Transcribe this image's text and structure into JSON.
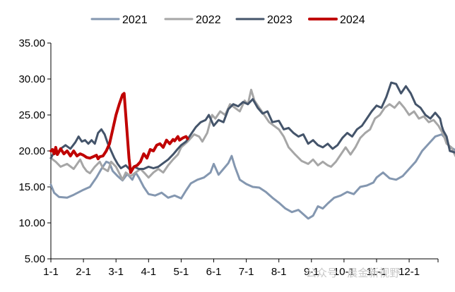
{
  "chart_data": {
    "type": "line",
    "title": "",
    "xlabel": "",
    "ylabel": "",
    "ylim": [
      5,
      35
    ],
    "yticks": [
      "5.00",
      "10.00",
      "15.00",
      "20.00",
      "25.00",
      "30.00",
      "35.00"
    ],
    "xlim": [
      0,
      12
    ],
    "xticks": [
      "1-1",
      "2-1",
      "3-1",
      "4-1",
      "5-1",
      "6-1",
      "7-1",
      "8-1",
      "9-1",
      "10-1",
      "11-1",
      "12-1"
    ],
    "legend_position": "top",
    "series": [
      {
        "name": "2021",
        "color": "#8497b0",
        "points": [
          [
            0,
            15.3
          ],
          [
            0.1,
            14.2
          ],
          [
            0.25,
            13.6
          ],
          [
            0.5,
            13.5
          ],
          [
            0.7,
            13.9
          ],
          [
            1.0,
            14.6
          ],
          [
            1.2,
            15.0
          ],
          [
            1.4,
            16.3
          ],
          [
            1.55,
            17.5
          ],
          [
            1.7,
            18.5
          ],
          [
            1.8,
            18.3
          ],
          [
            1.9,
            17.2
          ],
          [
            2.05,
            16.5
          ],
          [
            2.2,
            15.9
          ],
          [
            2.35,
            16.8
          ],
          [
            2.5,
            16.0
          ],
          [
            2.6,
            17.0
          ],
          [
            2.7,
            16.3
          ],
          [
            2.85,
            15.0
          ],
          [
            3.0,
            14.0
          ],
          [
            3.2,
            13.8
          ],
          [
            3.4,
            14.2
          ],
          [
            3.6,
            13.5
          ],
          [
            3.8,
            13.8
          ],
          [
            4.0,
            13.4
          ],
          [
            4.15,
            14.5
          ],
          [
            4.3,
            15.5
          ],
          [
            4.5,
            16.0
          ],
          [
            4.7,
            16.3
          ],
          [
            4.9,
            17.0
          ],
          [
            5.0,
            18.2
          ],
          [
            5.15,
            16.7
          ],
          [
            5.3,
            17.5
          ],
          [
            5.45,
            18.3
          ],
          [
            5.55,
            19.3
          ],
          [
            5.65,
            17.8
          ],
          [
            5.8,
            16.0
          ],
          [
            6.0,
            15.4
          ],
          [
            6.2,
            15.0
          ],
          [
            6.4,
            14.9
          ],
          [
            6.6,
            14.3
          ],
          [
            6.8,
            13.5
          ],
          [
            7.0,
            12.8
          ],
          [
            7.2,
            12.0
          ],
          [
            7.4,
            11.5
          ],
          [
            7.6,
            11.8
          ],
          [
            7.75,
            11.2
          ],
          [
            7.9,
            10.6
          ],
          [
            8.05,
            11.0
          ],
          [
            8.2,
            12.3
          ],
          [
            8.35,
            12.0
          ],
          [
            8.5,
            12.7
          ],
          [
            8.7,
            13.5
          ],
          [
            8.9,
            13.8
          ],
          [
            9.1,
            14.3
          ],
          [
            9.3,
            14.0
          ],
          [
            9.5,
            15.0
          ],
          [
            9.7,
            15.2
          ],
          [
            9.9,
            15.6
          ],
          [
            10.0,
            16.3
          ],
          [
            10.2,
            17.0
          ],
          [
            10.4,
            16.2
          ],
          [
            10.6,
            16.0
          ],
          [
            10.8,
            16.5
          ],
          [
            11.0,
            17.5
          ],
          [
            11.2,
            18.5
          ],
          [
            11.4,
            20.0
          ],
          [
            11.6,
            21.0
          ],
          [
            11.8,
            22.0
          ],
          [
            12.0,
            22.3
          ],
          [
            12.1,
            21.8
          ],
          [
            12.25,
            20.5
          ],
          [
            12.35,
            20.3
          ],
          [
            12.45,
            20.0
          ],
          [
            12.5,
            19.8
          ]
        ]
      },
      {
        "name": "2022",
        "color": "#a6a6a6",
        "points": [
          [
            0,
            19.0
          ],
          [
            0.15,
            18.5
          ],
          [
            0.3,
            17.8
          ],
          [
            0.5,
            18.2
          ],
          [
            0.7,
            17.5
          ],
          [
            0.9,
            18.8
          ],
          [
            1.0,
            17.8
          ],
          [
            1.1,
            17.2
          ],
          [
            1.2,
            16.9
          ],
          [
            1.35,
            17.8
          ],
          [
            1.5,
            18.5
          ],
          [
            1.6,
            17.6
          ],
          [
            1.75,
            17.2
          ],
          [
            1.85,
            18.5
          ],
          [
            2.0,
            17.8
          ],
          [
            2.1,
            16.9
          ],
          [
            2.2,
            16.0
          ],
          [
            2.3,
            17.0
          ],
          [
            2.45,
            16.5
          ],
          [
            2.6,
            17.0
          ],
          [
            2.75,
            17.5
          ],
          [
            2.9,
            16.8
          ],
          [
            3.0,
            16.3
          ],
          [
            3.15,
            17.0
          ],
          [
            3.3,
            17.5
          ],
          [
            3.45,
            17.0
          ],
          [
            3.6,
            18.0
          ],
          [
            3.75,
            18.8
          ],
          [
            3.9,
            19.5
          ],
          [
            4.0,
            20.5
          ],
          [
            4.2,
            21.3
          ],
          [
            4.4,
            22.3
          ],
          [
            4.55,
            22.0
          ],
          [
            4.65,
            21.3
          ],
          [
            4.8,
            22.5
          ],
          [
            4.95,
            25.0
          ],
          [
            5.05,
            24.5
          ],
          [
            5.2,
            25.5
          ],
          [
            5.35,
            25.0
          ],
          [
            5.5,
            26.5
          ],
          [
            5.65,
            26.0
          ],
          [
            5.8,
            25.5
          ],
          [
            5.95,
            27.0
          ],
          [
            6.05,
            26.5
          ],
          [
            6.15,
            28.5
          ],
          [
            6.25,
            27.0
          ],
          [
            6.4,
            26.0
          ],
          [
            6.55,
            25.0
          ],
          [
            6.7,
            24.0
          ],
          [
            6.85,
            23.5
          ],
          [
            7.0,
            23.0
          ],
          [
            7.15,
            22.0
          ],
          [
            7.3,
            20.5
          ],
          [
            7.5,
            19.5
          ],
          [
            7.7,
            18.6
          ],
          [
            7.9,
            18.2
          ],
          [
            8.05,
            18.8
          ],
          [
            8.2,
            18.0
          ],
          [
            8.35,
            18.5
          ],
          [
            8.5,
            18.0
          ],
          [
            8.6,
            17.8
          ],
          [
            8.75,
            18.5
          ],
          [
            8.9,
            19.5
          ],
          [
            9.05,
            20.5
          ],
          [
            9.2,
            19.5
          ],
          [
            9.35,
            20.5
          ],
          [
            9.5,
            21.8
          ],
          [
            9.65,
            22.5
          ],
          [
            9.8,
            23.0
          ],
          [
            9.95,
            24.5
          ],
          [
            10.1,
            25.0
          ],
          [
            10.25,
            26.0
          ],
          [
            10.4,
            26.5
          ],
          [
            10.55,
            26.0
          ],
          [
            10.7,
            26.8
          ],
          [
            10.85,
            26.0
          ],
          [
            11.0,
            25.0
          ],
          [
            11.15,
            25.5
          ],
          [
            11.3,
            24.5
          ],
          [
            11.45,
            24.8
          ],
          [
            11.6,
            24.0
          ],
          [
            11.75,
            24.3
          ],
          [
            11.9,
            23.5
          ],
          [
            12.05,
            22.3
          ],
          [
            12.15,
            21.0
          ],
          [
            12.3,
            20.5
          ],
          [
            12.4,
            19.5
          ],
          [
            12.5,
            18.6
          ]
        ]
      },
      {
        "name": "2023",
        "color": "#44546a",
        "points": [
          [
            0,
            19.0
          ],
          [
            0.1,
            19.8
          ],
          [
            0.2,
            19.5
          ],
          [
            0.3,
            20.3
          ],
          [
            0.45,
            20.8
          ],
          [
            0.6,
            20.3
          ],
          [
            0.75,
            21.2
          ],
          [
            0.85,
            22.0
          ],
          [
            0.95,
            21.3
          ],
          [
            1.05,
            21.5
          ],
          [
            1.15,
            21.0
          ],
          [
            1.25,
            21.5
          ],
          [
            1.35,
            21.0
          ],
          [
            1.45,
            22.5
          ],
          [
            1.55,
            23.0
          ],
          [
            1.65,
            22.3
          ],
          [
            1.75,
            21.0
          ],
          [
            1.85,
            20.0
          ],
          [
            1.95,
            19.0
          ],
          [
            2.05,
            18.2
          ],
          [
            2.15,
            17.6
          ],
          [
            2.3,
            18.0
          ],
          [
            2.45,
            17.3
          ],
          [
            2.55,
            17.8
          ],
          [
            2.7,
            17.5
          ],
          [
            2.85,
            17.5
          ],
          [
            3.0,
            17.8
          ],
          [
            3.15,
            17.6
          ],
          [
            3.3,
            17.8
          ],
          [
            3.45,
            18.3
          ],
          [
            3.6,
            18.8
          ],
          [
            3.75,
            19.5
          ],
          [
            3.9,
            20.3
          ],
          [
            4.0,
            20.8
          ],
          [
            4.15,
            21.3
          ],
          [
            4.3,
            22.3
          ],
          [
            4.45,
            23.3
          ],
          [
            4.6,
            24.0
          ],
          [
            4.75,
            24.3
          ],
          [
            4.85,
            25.0
          ],
          [
            5.0,
            23.5
          ],
          [
            5.15,
            24.3
          ],
          [
            5.3,
            24.0
          ],
          [
            5.45,
            25.8
          ],
          [
            5.6,
            26.5
          ],
          [
            5.75,
            26.2
          ],
          [
            5.9,
            26.8
          ],
          [
            6.05,
            26.5
          ],
          [
            6.2,
            27.2
          ],
          [
            6.35,
            26.0
          ],
          [
            6.5,
            25.2
          ],
          [
            6.65,
            25.5
          ],
          [
            6.8,
            24.0
          ],
          [
            7.0,
            24.2
          ],
          [
            7.15,
            23.0
          ],
          [
            7.3,
            23.2
          ],
          [
            7.45,
            22.5
          ],
          [
            7.6,
            22.0
          ],
          [
            7.75,
            22.3
          ],
          [
            7.9,
            21.0
          ],
          [
            8.05,
            21.5
          ],
          [
            8.2,
            20.8
          ],
          [
            8.35,
            20.5
          ],
          [
            8.5,
            21.0
          ],
          [
            8.65,
            20.3
          ],
          [
            8.8,
            20.8
          ],
          [
            8.95,
            21.8
          ],
          [
            9.1,
            22.5
          ],
          [
            9.25,
            22.0
          ],
          [
            9.4,
            23.0
          ],
          [
            9.55,
            23.5
          ],
          [
            9.7,
            24.5
          ],
          [
            9.85,
            25.5
          ],
          [
            10.0,
            26.3
          ],
          [
            10.15,
            26.0
          ],
          [
            10.3,
            27.5
          ],
          [
            10.45,
            29.5
          ],
          [
            10.6,
            29.3
          ],
          [
            10.75,
            28.0
          ],
          [
            10.9,
            29.0
          ],
          [
            11.05,
            28.0
          ],
          [
            11.2,
            26.5
          ],
          [
            11.35,
            26.0
          ],
          [
            11.5,
            25.0
          ],
          [
            11.65,
            24.5
          ],
          [
            11.8,
            25.3
          ],
          [
            11.95,
            24.5
          ],
          [
            12.0,
            23.5
          ],
          [
            12.05,
            22.8
          ],
          [
            12.15,
            22.0
          ],
          [
            12.25,
            20.0
          ],
          [
            12.4,
            19.8
          ],
          [
            12.5,
            19.5
          ]
        ]
      },
      {
        "name": "2024",
        "color": "#c00000",
        "points": [
          [
            0,
            20.0
          ],
          [
            0.05,
            20.2
          ],
          [
            0.1,
            19.6
          ],
          [
            0.15,
            20.5
          ],
          [
            0.2,
            19.5
          ],
          [
            0.3,
            20.3
          ],
          [
            0.4,
            19.6
          ],
          [
            0.5,
            20.0
          ],
          [
            0.6,
            19.3
          ],
          [
            0.7,
            20.0
          ],
          [
            0.8,
            19.3
          ],
          [
            0.9,
            19.6
          ],
          [
            1.0,
            19.4
          ],
          [
            1.1,
            19.1
          ],
          [
            1.2,
            19.0
          ],
          [
            1.3,
            19.2
          ],
          [
            1.4,
            19.4
          ],
          [
            1.45,
            18.9
          ],
          [
            1.5,
            19.2
          ],
          [
            1.6,
            19.3
          ],
          [
            1.7,
            20.0
          ],
          [
            1.8,
            21.0
          ],
          [
            1.9,
            23.0
          ],
          [
            2.0,
            25.0
          ],
          [
            2.1,
            26.5
          ],
          [
            2.2,
            27.8
          ],
          [
            2.25,
            28.0
          ],
          [
            2.3,
            25.0
          ],
          [
            2.35,
            22.0
          ],
          [
            2.4,
            19.0
          ],
          [
            2.45,
            17.0
          ],
          [
            2.55,
            17.8
          ],
          [
            2.65,
            18.0
          ],
          [
            2.75,
            18.5
          ],
          [
            2.85,
            19.6
          ],
          [
            2.95,
            19.0
          ],
          [
            3.05,
            20.2
          ],
          [
            3.15,
            20.0
          ],
          [
            3.25,
            20.8
          ],
          [
            3.35,
            21.0
          ],
          [
            3.45,
            20.5
          ],
          [
            3.55,
            21.5
          ],
          [
            3.65,
            21.0
          ],
          [
            3.75,
            21.6
          ],
          [
            3.8,
            21.4
          ],
          [
            3.9,
            22.0
          ],
          [
            3.95,
            21.5
          ],
          [
            4.05,
            21.8
          ],
          [
            4.15,
            22.0
          ],
          [
            4.2,
            21.7
          ]
        ]
      }
    ]
  },
  "watermark": {
    "text": "公众号 · 晨金新视野"
  }
}
